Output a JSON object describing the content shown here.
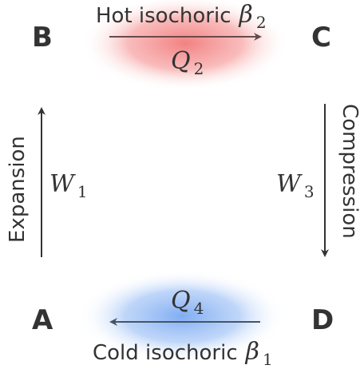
{
  "corners": {
    "a": "A",
    "b": "B",
    "c": "C",
    "d": "D"
  },
  "hot_stroke": {
    "label": "Hot isochoric",
    "beta_symbol": "β",
    "beta_sub": "2",
    "heat_symbol": "Q",
    "heat_sub": "2",
    "glow_color": "#f06b6b",
    "arrow_color": "#6b4a4a"
  },
  "cold_stroke": {
    "label": "Cold isochoric",
    "beta_symbol": "β",
    "beta_sub": "1",
    "heat_symbol": "Q",
    "heat_sub": "4",
    "glow_color": "#6a9ff0",
    "arrow_color": "#445566"
  },
  "expansion": {
    "label": "Expansion",
    "work_symbol": "W",
    "work_sub": "1"
  },
  "compression": {
    "label": "Compression",
    "work_symbol": "W",
    "work_sub": "3"
  },
  "colors": {
    "text": "#333333",
    "arrow": "#333333"
  }
}
